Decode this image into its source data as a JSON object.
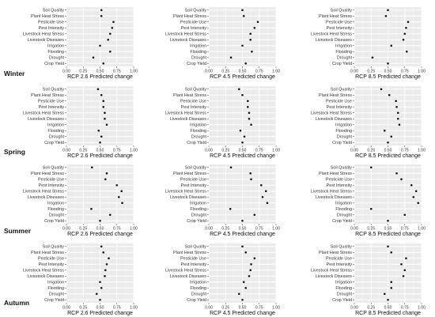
{
  "chart_data": [
    {
      "type": "scatter",
      "season": "Winter",
      "panels": [
        {
          "xlabel": "RCP 2.6 Predicted change",
          "categories": [
            "Soil Quality",
            "Plant Heat Stress",
            "Pesticide Use",
            "Pest Intensity",
            "Livestock Heat Stress",
            "Livestock Diseases",
            "Irrigation",
            "Flooding",
            "Drought",
            "Crop Yield"
          ],
          "values": [
            0.52,
            0.52,
            0.7,
            0.68,
            0.65,
            0.62,
            0.5,
            0.65,
            0.4,
            0.55
          ],
          "xlim": [
            0,
            1
          ],
          "xticks": [
            "0.00",
            "0.25",
            "0.50",
            "0.75",
            "1.00"
          ]
        },
        {
          "xlabel": "RCP 4.5 Predicted change",
          "categories": [
            "Soil Quality",
            "Plant Heat Stress",
            "Pesticide Use",
            "Pest Intensity",
            "Livestock Heat Stress",
            "Livestock Diseases",
            "Irrigation",
            "Flooding",
            "Drought",
            "Crop Yield"
          ],
          "values": [
            0.5,
            0.52,
            0.73,
            0.68,
            0.62,
            0.62,
            0.5,
            0.64,
            0.33,
            0.55
          ],
          "xlim": [
            0,
            1
          ],
          "xticks": [
            "0.00",
            "0.25",
            "0.50",
            "0.75",
            "1.00"
          ]
        },
        {
          "xlabel": "RCP 8.5 Predicted change",
          "categories": [
            "Soil Quality",
            "Plant Heat Stress",
            "Pesticide Use",
            "Pest Intensity",
            "Livestock Heat Stress",
            "Livestock Diseases",
            "Irrigation",
            "Flooding",
            "Drought",
            "Crop Yield"
          ],
          "values": [
            0.5,
            0.47,
            0.8,
            0.77,
            0.75,
            0.73,
            0.55,
            0.78,
            0.27,
            0.5
          ],
          "xlim": [
            0,
            1
          ],
          "xticks": [
            "0.00",
            "0.25",
            "0.50",
            "0.75",
            "1.00"
          ]
        }
      ]
    },
    {
      "type": "scatter",
      "season": "Spring",
      "panels": [
        {
          "xlabel": "RCP 2.6 Predicted change",
          "categories": [
            "Soil Quality",
            "Plant Heat Stress",
            "Pesticide Use",
            "Pest Intensity",
            "Livestock Heat Stress",
            "Livestock Diseases",
            "Irrigation",
            "Flooding",
            "Drought",
            "Crop Yield"
          ],
          "values": [
            0.47,
            0.52,
            0.55,
            0.55,
            0.57,
            0.57,
            0.6,
            0.48,
            0.52,
            0.5
          ],
          "xlim": [
            0,
            1
          ],
          "xticks": [
            "0.00",
            "0.25",
            "0.50",
            "0.75",
            "1.00"
          ]
        },
        {
          "xlabel": "RCP 4.5 Predicted change",
          "categories": [
            "Soil Quality",
            "Plant Heat Stress",
            "Pesticide Use",
            "Pest Intensity",
            "Livestock Heat Stress",
            "Livestock Diseases",
            "Irrigation",
            "Flooding",
            "Drought",
            "Crop Yield"
          ],
          "values": [
            0.45,
            0.5,
            0.58,
            0.58,
            0.6,
            0.6,
            0.63,
            0.47,
            0.53,
            0.5
          ],
          "xlim": [
            0,
            1
          ],
          "xticks": [
            "0.00",
            "0.25",
            "0.50",
            "0.75",
            "1.00"
          ]
        },
        {
          "xlabel": "RCP 8.5 Predicted change",
          "categories": [
            "Soil Quality",
            "Plant Heat Stress",
            "Pesticide Use",
            "Pest Intensity",
            "Livestock Heat Stress",
            "Livestock Diseases",
            "Irrigation",
            "Flooding",
            "Drought",
            "Crop Yield"
          ],
          "values": [
            0.4,
            0.52,
            0.62,
            0.63,
            0.65,
            0.65,
            0.67,
            0.45,
            0.55,
            0.5
          ],
          "xlim": [
            0,
            1
          ],
          "xticks": [
            "0.00",
            "0.25",
            "0.50",
            "0.75",
            "1.00"
          ]
        }
      ]
    },
    {
      "type": "scatter",
      "season": "Summer",
      "panels": [
        {
          "xlabel": "RCP 2.6 Predicted change",
          "categories": [
            "Soil Quality",
            "Plant Heat Stress",
            "Pesticide Use",
            "Pest Intensity",
            "Livestock Heat Stress",
            "Livestock Diseases",
            "Irrigation",
            "Flooding",
            "Drought",
            "Crop Yield"
          ],
          "values": [
            0.38,
            0.6,
            0.58,
            0.75,
            0.82,
            0.78,
            0.83,
            0.37,
            0.65,
            0.5
          ],
          "xlim": [
            0,
            1
          ],
          "xticks": [
            "0.00",
            "0.25",
            "0.50",
            "0.75",
            "1.00"
          ]
        },
        {
          "xlabel": "RCP 4.5 Predicted change",
          "categories": [
            "Soil Quality",
            "Plant Heat Stress",
            "Pesticide Use",
            "Pest Intensity",
            "Livestock Heat Stress",
            "Livestock Diseases",
            "Irrigation",
            "Flooding",
            "Drought",
            "Crop Yield"
          ],
          "values": [
            0.33,
            0.62,
            0.63,
            0.78,
            0.85,
            0.8,
            0.87,
            0.32,
            0.68,
            0.5
          ],
          "xlim": [
            0,
            1
          ],
          "xticks": [
            "0.00",
            "0.25",
            "0.50",
            "0.75",
            "1.00"
          ]
        },
        {
          "xlabel": "RCP 8.5 Predicted change",
          "categories": [
            "Soil Quality",
            "Plant Heat Stress",
            "Pesticide Use",
            "Pest Intensity",
            "Livestock Heat Stress",
            "Livestock Diseases",
            "Irrigation",
            "Flooding",
            "Drought",
            "Crop Yield"
          ],
          "values": [
            0.25,
            0.63,
            0.7,
            0.85,
            0.92,
            0.88,
            0.95,
            0.25,
            0.75,
            0.5
          ],
          "xlim": [
            0,
            1
          ],
          "xticks": [
            "0.00",
            "0.25",
            "0.50",
            "0.75",
            "1.00"
          ]
        }
      ]
    },
    {
      "type": "scatter",
      "season": "Autumn",
      "panels": [
        {
          "xlabel": "RCP 2.6 Predicted change",
          "categories": [
            "Soil Quality",
            "Plant Heat Stress",
            "Pesticide Use",
            "Pest Intensity",
            "Livestock Heat Stress",
            "Livestock Diseases",
            "Irrigation",
            "Flooding",
            "Drought",
            "Crop Yield"
          ],
          "values": [
            0.52,
            0.55,
            0.63,
            0.6,
            0.58,
            0.57,
            0.5,
            0.52,
            0.45,
            0.5
          ],
          "xlim": [
            0,
            1
          ],
          "xticks": [
            "0.00",
            "0.25",
            "0.50",
            "0.75",
            "1.00"
          ]
        },
        {
          "xlabel": "RCP 4.5 Predicted change",
          "categories": [
            "Soil Quality",
            "Plant Heat Stress",
            "Pesticide Use",
            "Pest Intensity",
            "Livestock Heat Stress",
            "Livestock Diseases",
            "Irrigation",
            "Flooding",
            "Drought",
            "Crop Yield"
          ],
          "values": [
            0.5,
            0.55,
            0.68,
            0.63,
            0.62,
            0.6,
            0.52,
            0.55,
            0.45,
            0.5
          ],
          "xlim": [
            0,
            1
          ],
          "xticks": [
            "0.00",
            "0.25",
            "0.50",
            "0.75",
            "1.00"
          ]
        },
        {
          "xlabel": "RCP 8.5 Predicted change",
          "categories": [
            "Soil Quality",
            "Plant Heat Stress",
            "Pesticide Use",
            "Pest Intensity",
            "Livestock Heat Stress",
            "Livestock Diseases",
            "Irrigation",
            "Flooding",
            "Drought",
            "Crop Yield"
          ],
          "values": [
            0.5,
            0.55,
            0.77,
            0.7,
            0.75,
            0.73,
            0.55,
            0.55,
            0.45,
            0.5
          ],
          "xlim": [
            0,
            1
          ],
          "xticks": [
            "0.00",
            "0.25",
            "0.50",
            "0.75",
            "1.00"
          ]
        }
      ]
    }
  ],
  "colors": {
    "panel_background": "#ebebeb",
    "grid_major": "#ffffff",
    "grid_minor": "#f5f5f5",
    "point": "#111111"
  }
}
